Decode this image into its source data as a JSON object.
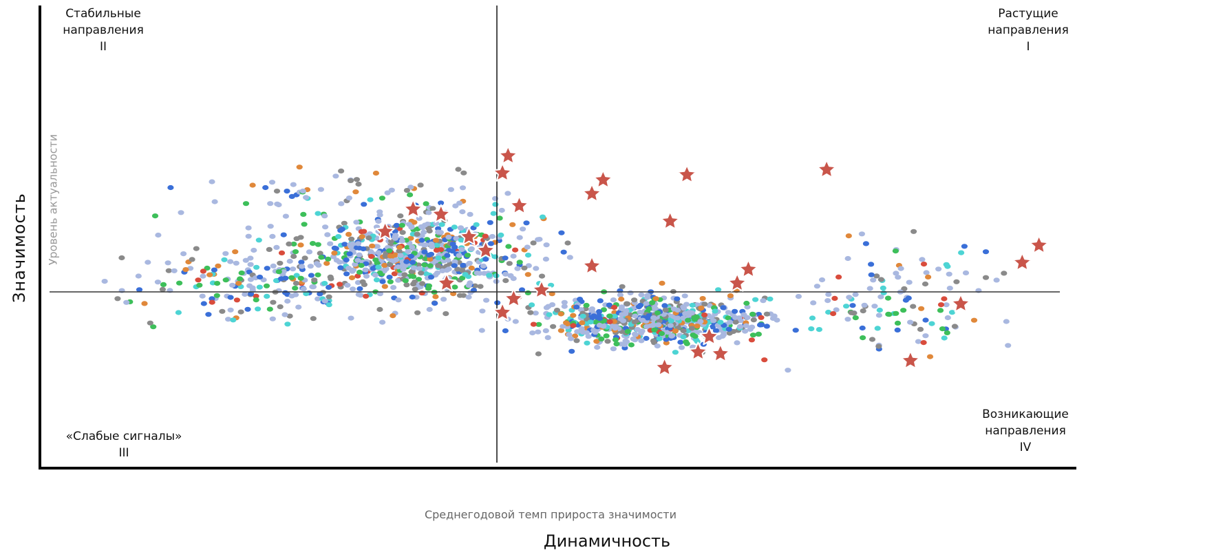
{
  "chart_data": {
    "type": "scatter",
    "title": "",
    "xlabel": "Динамичность",
    "xlabel_secondary": "Среднегодовой темп прироста значимости",
    "ylabel": "Значимость",
    "ylabel_secondary": "Уровень актуальности",
    "xlim": [
      -1,
      1
    ],
    "ylim": [
      -1,
      1
    ],
    "grid": false,
    "quadrants": [
      {
        "label": "Стабильные\nнаправления\nII"
      },
      {
        "label": "Растущие\nнаправления\nI"
      },
      {
        "label": "«Слабые сигналы»\nIII"
      },
      {
        "label": "Возникающие\nнаправления\nIV"
      }
    ],
    "colors": [
      "#a9b8e0",
      "#8a8a8a",
      "#3a6fd8",
      "#3dbf5a",
      "#4dd4d4",
      "#e0883a",
      "#d94c3c"
    ],
    "star_color": "#c9554a",
    "stars": [
      {
        "x": 0.02,
        "y": 0.79
      },
      {
        "x": 0.01,
        "y": 0.69
      },
      {
        "x": 0.04,
        "y": 0.5
      },
      {
        "x": -0.15,
        "y": 0.48
      },
      {
        "x": -0.1,
        "y": 0.45
      },
      {
        "x": -0.2,
        "y": 0.35
      },
      {
        "x": -0.05,
        "y": 0.32
      },
      {
        "x": -0.02,
        "y": 0.24
      },
      {
        "x": 0.19,
        "y": 0.65
      },
      {
        "x": 0.17,
        "y": 0.57
      },
      {
        "x": 0.34,
        "y": 0.68
      },
      {
        "x": 0.31,
        "y": 0.41
      },
      {
        "x": 0.59,
        "y": 0.71
      },
      {
        "x": 0.17,
        "y": 0.15
      },
      {
        "x": -0.09,
        "y": 0.05
      },
      {
        "x": 0.08,
        "y": 0.01
      },
      {
        "x": 0.03,
        "y": -0.04
      },
      {
        "x": 0.01,
        "y": -0.12
      },
      {
        "x": 0.45,
        "y": 0.13
      },
      {
        "x": 0.43,
        "y": 0.05
      },
      {
        "x": 0.38,
        "y": -0.26
      },
      {
        "x": 0.36,
        "y": -0.35
      },
      {
        "x": 0.4,
        "y": -0.36
      },
      {
        "x": 0.3,
        "y": -0.44
      },
      {
        "x": 0.74,
        "y": -0.4
      },
      {
        "x": 0.83,
        "y": -0.07
      },
      {
        "x": 0.94,
        "y": 0.17
      },
      {
        "x": 0.97,
        "y": 0.27
      }
    ]
  }
}
